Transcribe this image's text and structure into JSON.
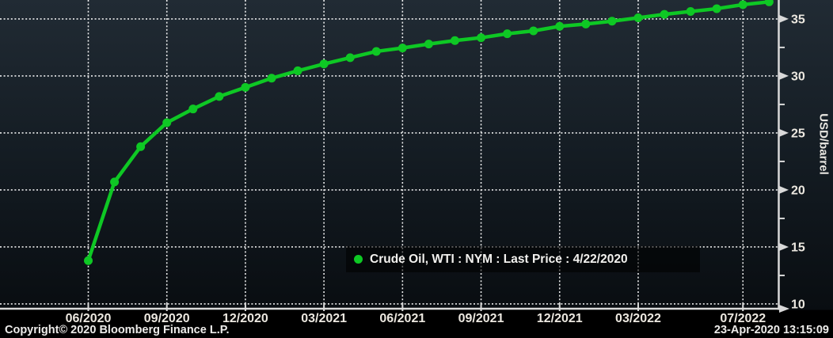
{
  "chart_data": {
    "type": "line",
    "title": "",
    "series_name": "Crude Oil, WTI : NYM : Last Price : 4/22/2020",
    "x": [
      "06/2020",
      "07/2020",
      "08/2020",
      "09/2020",
      "10/2020",
      "11/2020",
      "12/2020",
      "01/2021",
      "02/2021",
      "03/2021",
      "04/2021",
      "05/2021",
      "06/2021",
      "07/2021",
      "08/2021",
      "09/2021",
      "10/2021",
      "11/2021",
      "12/2021",
      "01/2022",
      "02/2022",
      "03/2022",
      "04/2022",
      "05/2022",
      "06/2022",
      "07/2022",
      "08/2022"
    ],
    "values": [
      13.8,
      20.7,
      23.8,
      25.9,
      27.1,
      28.2,
      29.0,
      29.8,
      30.45,
      31.05,
      31.6,
      32.15,
      32.45,
      32.8,
      33.1,
      33.35,
      33.7,
      33.95,
      34.35,
      34.55,
      34.8,
      35.1,
      35.4,
      35.65,
      35.9,
      36.25,
      36.5
    ],
    "x_ticks": [
      {
        "label": "06/2020",
        "m": 0
      },
      {
        "label": "09/2020",
        "m": 3
      },
      {
        "label": "12/2020",
        "m": 6
      },
      {
        "label": "03/2021",
        "m": 9
      },
      {
        "label": "06/2021",
        "m": 12
      },
      {
        "label": "09/2021",
        "m": 15
      },
      {
        "label": "12/2021",
        "m": 18
      },
      {
        "label": "03/2022",
        "m": 21
      },
      {
        "label": "07/2022",
        "m": 25
      }
    ],
    "y_ticks": [
      10,
      15,
      20,
      25,
      30,
      35
    ],
    "y_minor_ticks": [
      12.5,
      17.5,
      22.5,
      27.5,
      32.5
    ],
    "ylim": [
      9.58,
      36.66
    ],
    "ylabel": "USD/barrel",
    "xlabel": "",
    "grid": true,
    "legend_position": "bottom-center-inside",
    "colors": {
      "line": "#0ec824",
      "marker": "#0ec824",
      "grid": "#ffffff",
      "axis": "#d9d9d9",
      "tick_text": "#ece8e0",
      "bg_top": "#212b34",
      "bg_mid": "#141c23",
      "bg_bottom": "#090d11"
    }
  },
  "legend": {
    "marker_icon": "circle"
  },
  "footer": {
    "copyright": "Copyright© 2020 Bloomberg Finance L.P.",
    "timestamp": "23-Apr-2020 13:15:09"
  }
}
